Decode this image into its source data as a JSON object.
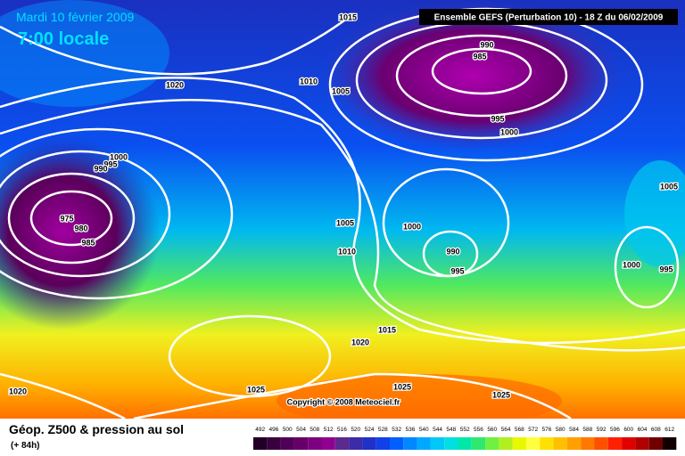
{
  "header": {
    "date": "Mardi 10 février 2009",
    "time": "7:00 locale",
    "model": "Ensemble GEFS (Perturbation 10)  -  18 Z du 06/02/2009"
  },
  "map": {
    "copyright": "Copyright © 2008 Meteociel.fr",
    "isobar_labels": [
      "1015",
      "1020",
      "1010",
      "1005",
      "990",
      "985",
      "995",
      "1000",
      "1000",
      "995",
      "990",
      "975",
      "980",
      "985",
      "1005",
      "1000",
      "1010",
      "990",
      "995",
      "1000",
      "995",
      "1005",
      "1015",
      "1020",
      "1025",
      "1025",
      "1025",
      "1020"
    ]
  },
  "footer": {
    "caption": "Géop. Z500 & pression au sol",
    "lead": "(+ 84h)"
  },
  "legend": {
    "values": [
      492,
      496,
      500,
      504,
      508,
      512,
      516,
      520,
      524,
      528,
      532,
      536,
      540,
      544,
      548,
      552,
      556,
      560,
      564,
      568,
      572,
      576,
      580,
      584,
      588,
      592,
      596,
      600,
      604,
      608,
      612
    ],
    "colors": [
      "#200028",
      "#38003e",
      "#500058",
      "#660068",
      "#7c0080",
      "#900090",
      "#5c2a8c",
      "#3c2ca8",
      "#2030c8",
      "#1040e8",
      "#0060ff",
      "#0088ff",
      "#00a8ff",
      "#00c8f8",
      "#00e0e0",
      "#00e8a8",
      "#30e870",
      "#70f040",
      "#b0f020",
      "#e8f800",
      "#ffff40",
      "#ffe000",
      "#ffc000",
      "#ffa000",
      "#ff7800",
      "#ff5000",
      "#ff2000",
      "#e00000",
      "#b00000",
      "#700000",
      "#100000"
    ]
  }
}
